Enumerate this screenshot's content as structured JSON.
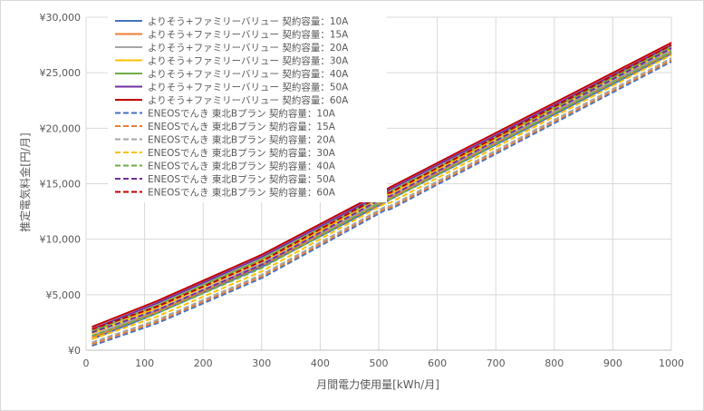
{
  "chart_data": {
    "type": "line",
    "title": "",
    "xlabel": "月間電力使用量[kWh/月]",
    "ylabel": "推定電気料金[円/月]",
    "xlim": [
      0,
      1000
    ],
    "ylim": [
      0,
      30000
    ],
    "xticks": [
      0,
      100,
      200,
      300,
      400,
      500,
      600,
      700,
      800,
      900,
      1000
    ],
    "yticks": [
      0,
      5000,
      10000,
      15000,
      20000,
      25000,
      30000
    ],
    "ytick_labels": [
      "¥0",
      "¥5,000",
      "¥10,000",
      "¥15,000",
      "¥20,000",
      "¥25,000",
      "¥30,000"
    ],
    "grid": true,
    "legend_position": "top-left",
    "x": [
      10,
      120,
      300,
      510,
      520,
      1000
    ],
    "series": [
      {
        "name": "よりそう+ファミリーバリュー 契約容量：10A",
        "color": "#4472c4",
        "dash": false,
        "values": [
          1000,
          3300,
          7500,
          13300,
          13600,
          26700
        ]
      },
      {
        "name": "よりそう+ファミリーバリュー 契約容量：15A",
        "color": "#ed7d31",
        "dash": false,
        "values": [
          1150,
          3450,
          7650,
          13450,
          13750,
          26850
        ]
      },
      {
        "name": "よりそう+ファミリーバリュー 契約容量：20A",
        "color": "#a5a5a5",
        "dash": false,
        "values": [
          1300,
          3600,
          7800,
          13600,
          13900,
          27000
        ]
      },
      {
        "name": "よりそう+ファミリーバリュー 契約容量：30A",
        "color": "#ffc000",
        "dash": false,
        "values": [
          1500,
          3800,
          8000,
          13800,
          14100,
          27200
        ]
      },
      {
        "name": "よりそう+ファミリーバリュー 契約容量：40A",
        "color": "#70ad47",
        "dash": false,
        "values": [
          1700,
          4000,
          8200,
          14000,
          14300,
          27300
        ]
      },
      {
        "name": "よりそう+ファミリーバリュー 契約容量：50A",
        "color": "#7030a0",
        "dash": false,
        "values": [
          1900,
          4200,
          8400,
          14200,
          14500,
          27500
        ]
      },
      {
        "name": "よりそう+ファミリーバリュー 契約容量：60A",
        "color": "#c00000",
        "dash": false,
        "values": [
          2100,
          4400,
          8600,
          14400,
          14700,
          27700
        ]
      },
      {
        "name": "ENEOSでんき 東北Bプラン 契約容量：10A",
        "color": "#4472c4",
        "dash": true,
        "values": [
          400,
          2400,
          6500,
          12600,
          12700,
          26000
        ]
      },
      {
        "name": "ENEOSでんき 東北Bプラン 契約容量：15A",
        "color": "#ed7d31",
        "dash": true,
        "values": [
          550,
          2550,
          6650,
          12750,
          12850,
          26150
        ]
      },
      {
        "name": "ENEOSでんき 東北Bプラン 契約容量：20A",
        "color": "#a5a5a5",
        "dash": true,
        "values": [
          700,
          2700,
          6800,
          12900,
          13000,
          26300
        ]
      },
      {
        "name": "ENEOSでんき 東北Bプラン 契約容量：30A",
        "color": "#ffc000",
        "dash": true,
        "values": [
          1000,
          3000,
          7100,
          13200,
          13300,
          26600
        ]
      },
      {
        "name": "ENEOSでんき 東北Bプラン 契約容量：40A",
        "color": "#70ad47",
        "dash": true,
        "values": [
          1300,
          3300,
          7400,
          13500,
          13600,
          26900
        ]
      },
      {
        "name": "ENEOSでんき 東北Bプラン 契約容量：50A",
        "color": "#7030a0",
        "dash": true,
        "values": [
          1600,
          3600,
          7700,
          13800,
          13900,
          27200
        ]
      },
      {
        "name": "ENEOSでんき 東北Bプラン 契約容量：60A",
        "color": "#c00000",
        "dash": true,
        "values": [
          1900,
          3900,
          8000,
          14100,
          14200,
          27500
        ]
      }
    ]
  }
}
